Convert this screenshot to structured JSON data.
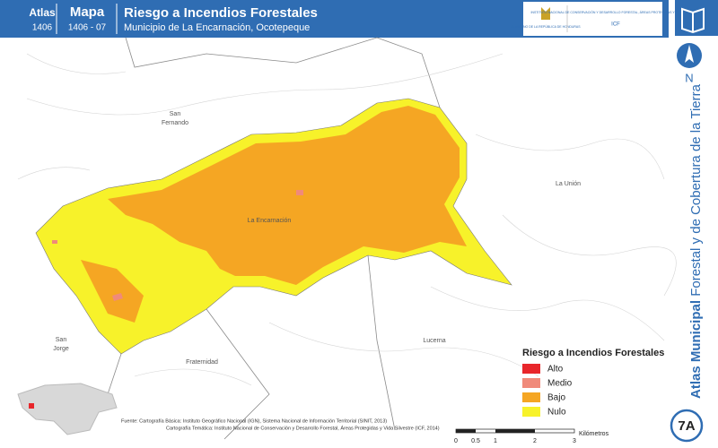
{
  "header": {
    "atlas_label": "Atlas",
    "atlas_number": "1406",
    "map_label": "Mapa",
    "map_number": "1406 - 07",
    "title": "Riesgo a Incendios Forestales",
    "subtitle": "Municipio de La Encarnación, Ocotepeque"
  },
  "logo": {
    "government": "GOBIERNO DE LA REPÚBLICA DE HONDURAS",
    "institute": "INSTITUTO NACIONAL DE CONSERVACIÓN Y DESARROLLO FORESTAL, ÁREAS PROTEGIDAS Y VIDA SILVESTRE",
    "acronym": "ICF"
  },
  "sidebar": {
    "north": "N",
    "series_bold": "Atlas Municipal",
    "series_rest": "Forestal y de Cobertura de la Tierra",
    "sheet": "7A"
  },
  "places": {
    "san": "San",
    "fernando": "Fernando",
    "la_union": "La Unión",
    "la_encarnacion": "La Encarnación",
    "san_jorge_1": "San",
    "san_jorge_2": "Jorge",
    "fraternidad": "Fraternidad",
    "lucerna": "Lucerna"
  },
  "legend": {
    "title": "Riesgo a Incendios Forestales",
    "items": [
      {
        "label": "Alto",
        "color": "#e8262b"
      },
      {
        "label": "Medio",
        "color": "#f08a7a"
      },
      {
        "label": "Bajo",
        "color": "#f5a623"
      },
      {
        "label": "Nulo",
        "color": "#f7f22a"
      }
    ]
  },
  "sources": {
    "line1": "Fuente: Cartografía Básica: Instituto Geográfico Nacional (IGN), Sistema Nacional de Información Territorial (SINIT, 2013)",
    "line2": "Cartografía Temática: Instituto Nacional de Conservación y Desarrollo Forestal, Áreas Protegidas y Vida Silvestre (ICF, 2014)"
  },
  "scale": {
    "labels": [
      "0",
      "0.5",
      "1",
      "2",
      "3"
    ],
    "unit": "Kilómetros"
  }
}
